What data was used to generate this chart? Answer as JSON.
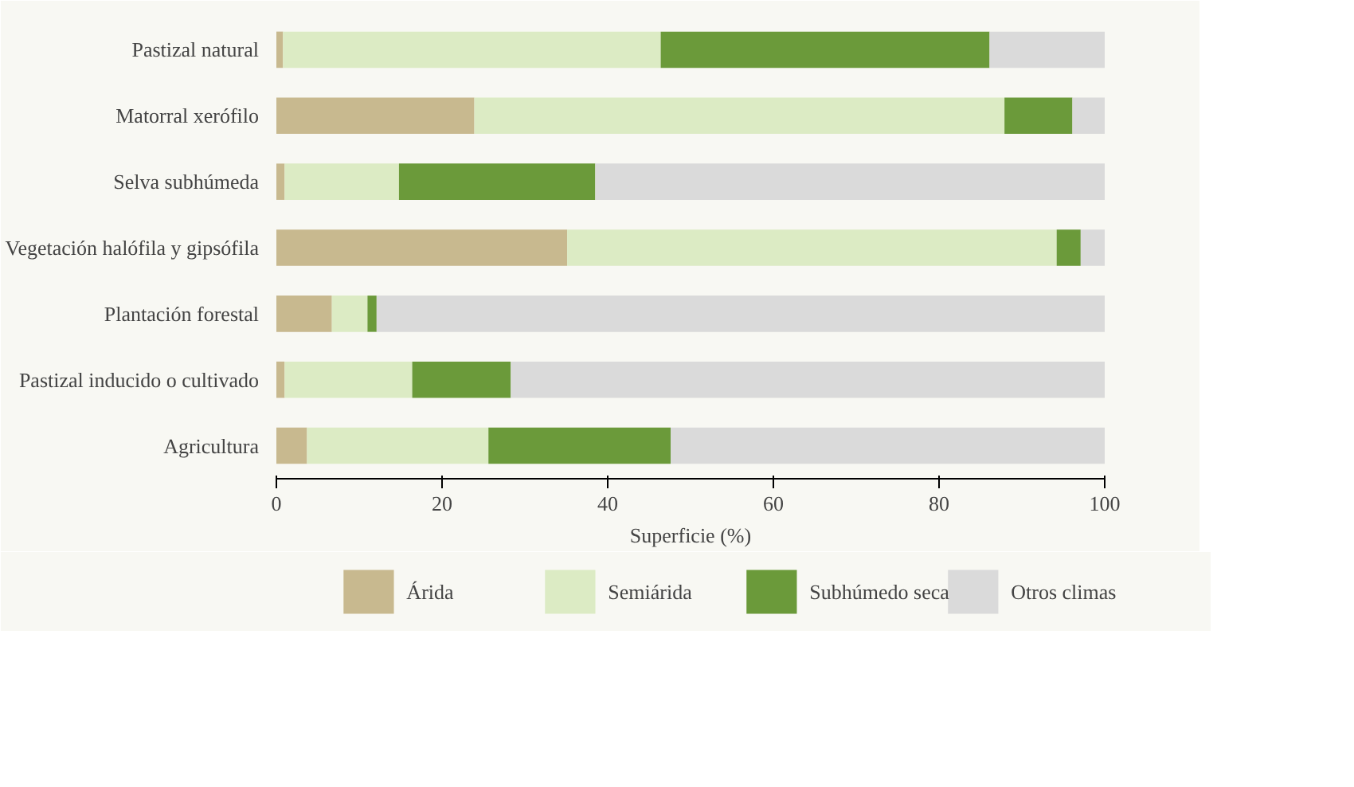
{
  "chart_data": {
    "type": "bar",
    "orientation": "horizontal",
    "stacked": true,
    "xlabel": "Superficie (%)",
    "categories": [
      "Pastizal natural",
      "Matorral xerófilo",
      "Selva subhúmeda",
      "Vegetación halófila y gipsófila",
      "Plantación forestal",
      "Pastizal inducido o cultivado",
      "Agricultura"
    ],
    "series": [
      {
        "name": "Árida",
        "color": "#c8b98f",
        "values": [
          0.8,
          23.9,
          1,
          35.1,
          6.7,
          1,
          3.7
        ]
      },
      {
        "name": "Semiárida",
        "color": "#dcebc4",
        "values": [
          45.6,
          64,
          13.8,
          59.1,
          4.3,
          15.4,
          21.9
        ]
      },
      {
        "name": "Subhúmedo seca",
        "color": "#6b9a3a",
        "values": [
          39.7,
          8.2,
          23.7,
          2.9,
          1.1,
          11.9,
          22
        ]
      },
      {
        "name": "Otros climas",
        "color": "#dadada",
        "values": [
          13.9,
          3.9,
          61.5,
          2.9,
          87.9,
          71.7,
          52.4
        ]
      }
    ],
    "xlim": [
      0,
      100
    ],
    "xticks": [
      0,
      20,
      40,
      60,
      80,
      100
    ],
    "grid": false,
    "legend": "bottom"
  }
}
